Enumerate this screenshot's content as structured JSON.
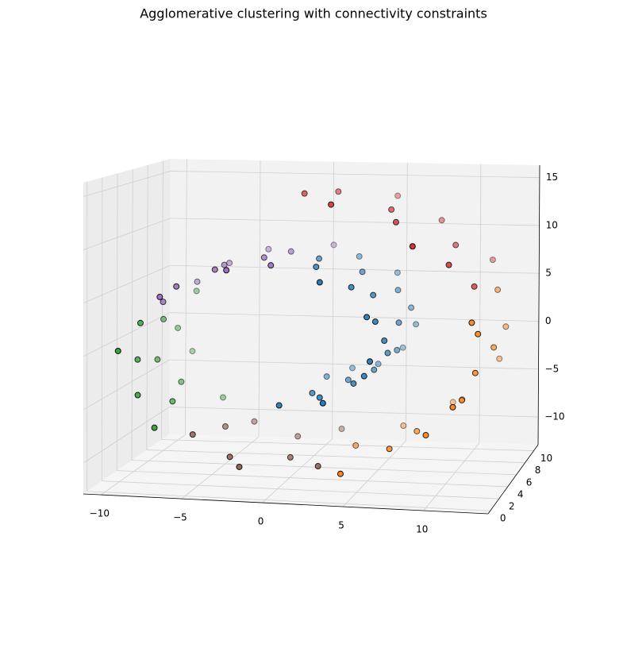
{
  "chart_data": {
    "type": "scatter3d",
    "title": "Agglomerative clustering with connectivity constraints",
    "xlim": [
      -11.1,
      14
    ],
    "ylim": [
      -0.5,
      11
    ],
    "zlim": [
      -12.9,
      16.3
    ],
    "xticks": [
      {
        "value": -10,
        "label": "−10"
      },
      {
        "value": -5,
        "label": "−5"
      },
      0,
      5,
      10
    ],
    "yticks": [
      0,
      2,
      4,
      6,
      8,
      10
    ],
    "zticks": [
      {
        "value": -10,
        "label": "−10"
      },
      {
        "value": -5,
        "label": "−5"
      },
      0,
      5,
      10,
      15
    ],
    "grid": true,
    "series": [
      {
        "color": "#1f77b4",
        "x": [
          0.4,
          0.9,
          1.4,
          1.9,
          2.4,
          2.9,
          3.4,
          3.9,
          4.3,
          4.8,
          5.1,
          5.5,
          5.8,
          6.0,
          6.2,
          6.3,
          6.4,
          6.3,
          6.3,
          6.1,
          5.9,
          5.6,
          5.3,
          4.9,
          4.4,
          3.8,
          3.2,
          2.6,
          1.9,
          1.2
        ],
        "y": [
          1.2,
          7.8,
          4.1,
          9.6,
          2.7,
          6.3,
          0.5,
          8.9,
          3.4,
          5.7,
          10.1,
          1.9,
          7.1,
          4.8,
          0.9,
          9.2,
          3.0,
          6.0,
          8.3,
          2.2,
          1.2,
          7.8,
          4.1,
          9.6,
          2.7,
          6.3,
          0.5,
          8.9,
          3.4,
          5.7
        ],
        "z": [
          -4.8,
          -4.8,
          -4.8,
          -4.7,
          -4.6,
          -4.4,
          -4.2,
          -3.9,
          -3.5,
          -3.1,
          -2.7,
          -2.2,
          -1.7,
          -1.1,
          -0.5,
          0.1,
          0.7,
          1.4,
          2.1,
          2.7,
          3.4,
          4.0,
          4.6,
          5.2,
          5.7,
          6.2,
          6.7,
          7.0,
          7.4,
          7.6
        ]
      },
      {
        "color": "#9467bd",
        "x": [
          0.4,
          -0.4,
          -1.2,
          -2.0,
          -2.8,
          -3.6,
          -4.4,
          -5.1,
          -5.8,
          -6.5,
          -7.1,
          -7.7,
          -8.2
        ],
        "y": [
          10.1,
          1.9,
          7.1,
          4.8,
          0.9,
          9.2,
          3.0,
          6.0,
          8.3,
          2.2,
          1.2,
          7.8,
          4.1
        ],
        "z": [
          7.8,
          7.9,
          7.9,
          7.9,
          7.7,
          7.5,
          7.2,
          6.8,
          6.3,
          5.8,
          5.1,
          4.5,
          3.7
        ]
      },
      {
        "color": "#2ca02c",
        "x": [
          -8.6,
          -9.0,
          -9.2,
          -9.4,
          -9.5,
          -9.5,
          -9.3,
          -9.1,
          -8.8,
          -8.4,
          -7.9,
          -7.3,
          -6.6
        ],
        "y": [
          9.6,
          2.7,
          6.3,
          0.5,
          8.9,
          3.4,
          5.7,
          10.1,
          1.9,
          7.1,
          4.8,
          0.9,
          9.2
        ],
        "z": [
          2.9,
          2.1,
          1.2,
          0.2,
          -0.7,
          -1.7,
          -2.6,
          -3.6,
          -4.5,
          -5.4,
          -6.3,
          -7.1,
          -7.9
        ]
      },
      {
        "color": "#8c564b",
        "x": [
          -5.8,
          -5.0,
          -4.1,
          -3.1,
          -2.1,
          -1.0,
          0.0,
          1.2,
          2.3
        ],
        "y": [
          3.0,
          6.0,
          8.3,
          2.2,
          1.2,
          7.8,
          4.1,
          9.6,
          2.7
        ],
        "z": [
          -8.6,
          -9.2,
          -9.8,
          -10.2,
          -10.6,
          -10.9,
          -11.0,
          -11.0,
          -11.0
        ]
      },
      {
        "color": "#ff7f0e",
        "x": [
          3.4,
          4.5,
          5.6,
          6.6,
          7.6,
          8.5,
          9.4,
          10.1,
          10.8,
          11.4,
          11.9,
          12.2,
          12.5,
          12.6,
          12.6,
          12.5,
          12.2
        ],
        "y": [
          6.3,
          0.5,
          8.9,
          3.4,
          5.7,
          10.1,
          1.9,
          7.1,
          4.8,
          0.9,
          9.2,
          3.0,
          6.0,
          8.3,
          2.2,
          1.2,
          7.8
        ],
        "z": [
          -10.8,
          -10.5,
          -10.1,
          -9.5,
          -8.9,
          -8.2,
          -7.4,
          -6.4,
          -5.4,
          -4.4,
          -3.2,
          -2.1,
          -0.8,
          0.4,
          1.7,
          3.0,
          4.2
        ]
      },
      {
        "color": "#d62728",
        "x": [
          11.8,
          11.3,
          10.6,
          9.9,
          9.0,
          8.1,
          7.0,
          5.9,
          4.7,
          3.4,
          1.9,
          0.6
        ],
        "y": [
          4.1,
          9.6,
          2.7,
          6.3,
          0.5,
          8.9,
          3.4,
          5.7,
          10.1,
          1.9,
          7.1,
          4.8
        ],
        "z": [
          5.5,
          6.7,
          7.8,
          8.9,
          9.9,
          10.8,
          11.6,
          12.4,
          13.0,
          13.5,
          13.9,
          14.1
        ]
      }
    ]
  }
}
